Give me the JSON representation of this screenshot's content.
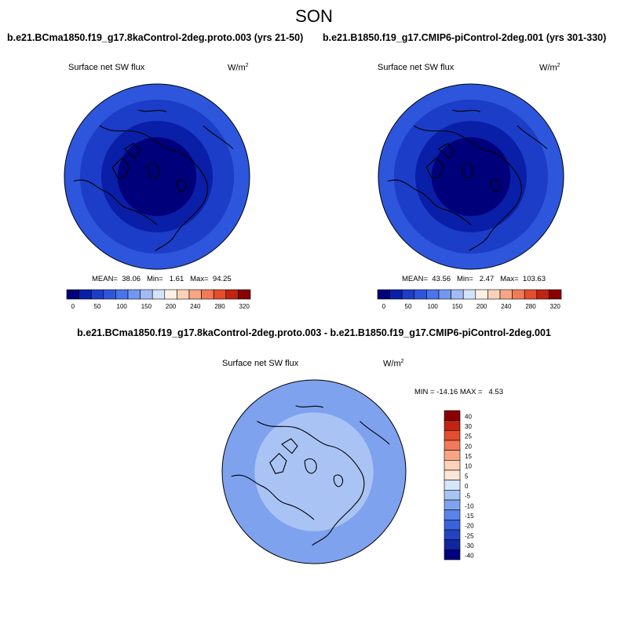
{
  "header": {
    "season": "SON"
  },
  "panels": [
    {
      "title": "b.e21.BCma1850.f19_g17.8kaControl-2deg.proto.003 (yrs 21-50)",
      "variable": "Surface net SW flux",
      "units_base": "W/m",
      "units_exp": "2",
      "stats": "MEAN=  38.06   Min=   1.61   Max=  94.25"
    },
    {
      "title": "b.e21.B1850.f19_g17.CMIP6-piControl-2deg.001 (yrs 301-330)",
      "variable": "Surface net SW flux",
      "units_base": "W/m",
      "units_exp": "2",
      "stats": "MEAN=  43.56   Min=   2.47   Max=  103.63"
    }
  ],
  "difference": {
    "title": "b.e21.BCma1850.f19_g17.8kaControl-2deg.proto.003 - b.e21.B1850.f19_g17.CMIP6-piControl-2deg.001",
    "variable": "Surface net SW flux",
    "units_base": "W/m",
    "units_exp": "2",
    "stats": "MIN = -14.16 MAX =   4.53"
  },
  "chart_data": [
    {
      "type": "heatmap",
      "projection": "north-polar-stereographic",
      "title": "b.e21.BCma1850.f19_g17.8kaControl-2deg.proto.003 (yrs 21-50)",
      "field": "Surface net SW flux",
      "units": "W/m2",
      "mean": 38.06,
      "min": 1.61,
      "max": 94.25,
      "colorbar": {
        "orientation": "horizontal",
        "levels": [
          0,
          25,
          50,
          75,
          100,
          125,
          150,
          175,
          200,
          220,
          240,
          260,
          280,
          300,
          320
        ],
        "tick_labels": [
          "0",
          "50",
          "100",
          "150",
          "200",
          "240",
          "280",
          "320"
        ],
        "colors": [
          "#00007a",
          "#0a1fa8",
          "#1c3dc8",
          "#2d56dc",
          "#4a74ec",
          "#7197f2",
          "#a2bbf5",
          "#d2e3fb",
          "#fdf0e4",
          "#fbd2b8",
          "#f7a585",
          "#f27a59",
          "#e54d2c",
          "#c02412",
          "#8a0000"
        ]
      },
      "rings": [
        {
          "lat_from": 90,
          "lat_to": 80,
          "value": 10
        },
        {
          "lat_from": 80,
          "lat_to": 70,
          "value": 20
        },
        {
          "lat_from": 70,
          "lat_to": 62,
          "value": 35
        },
        {
          "lat_from": 62,
          "lat_to": 52,
          "value": 60
        },
        {
          "lat_from": 52,
          "lat_to": 45,
          "value": 80
        }
      ]
    },
    {
      "type": "heatmap",
      "projection": "north-polar-stereographic",
      "title": "b.e21.B1850.f19_g17.CMIP6-piControl-2deg.001 (yrs 301-330)",
      "field": "Surface net SW flux",
      "units": "W/m2",
      "mean": 43.56,
      "min": 2.47,
      "max": 103.63,
      "colorbar": {
        "orientation": "horizontal",
        "levels": [
          0,
          25,
          50,
          75,
          100,
          125,
          150,
          175,
          200,
          220,
          240,
          260,
          280,
          300,
          320
        ],
        "tick_labels": [
          "0",
          "50",
          "100",
          "150",
          "200",
          "240",
          "280",
          "320"
        ],
        "colors": [
          "#00007a",
          "#0a1fa8",
          "#1c3dc8",
          "#2d56dc",
          "#4a74ec",
          "#7197f2",
          "#a2bbf5",
          "#d2e3fb",
          "#fdf0e4",
          "#fbd2b8",
          "#f7a585",
          "#f27a59",
          "#e54d2c",
          "#c02412",
          "#8a0000"
        ]
      },
      "rings": [
        {
          "lat_from": 90,
          "lat_to": 80,
          "value": 10
        },
        {
          "lat_from": 80,
          "lat_to": 70,
          "value": 20
        },
        {
          "lat_from": 70,
          "lat_to": 62,
          "value": 40
        },
        {
          "lat_from": 62,
          "lat_to": 52,
          "value": 65
        },
        {
          "lat_from": 52,
          "lat_to": 45,
          "value": 85
        }
      ]
    },
    {
      "type": "heatmap",
      "projection": "north-polar-stereographic",
      "title": "b.e21.BCma1850.f19_g17.8kaControl-2deg.proto.003 - b.e21.B1850.f19_g17.CMIP6-piControl-2deg.001",
      "field": "Surface net SW flux",
      "units": "W/m2",
      "min": -14.16,
      "max": 4.53,
      "colorbar": {
        "orientation": "vertical",
        "tick_labels": [
          "40",
          "30",
          "25",
          "20",
          "15",
          "10",
          "5",
          "0",
          "-5",
          "-10",
          "-15",
          "-20",
          "-25",
          "-30",
          "-40"
        ],
        "colors_top_to_bottom": [
          "#8a0000",
          "#c02412",
          "#e54d2c",
          "#f27a59",
          "#f7a585",
          "#fbd2b8",
          "#fde6d6",
          "#d6e7fb",
          "#a9c4f4",
          "#7ea2ee",
          "#5a82e8",
          "#3a62dc",
          "#2244c2",
          "#1026a0",
          "#000080"
        ]
      },
      "rings": [
        {
          "lat_from": 90,
          "lat_to": 75,
          "value": -2.5
        },
        {
          "lat_from": 75,
          "lat_to": 60,
          "value": -2.5
        },
        {
          "lat_from": 60,
          "lat_to": 45,
          "value": -7.5
        }
      ]
    }
  ]
}
